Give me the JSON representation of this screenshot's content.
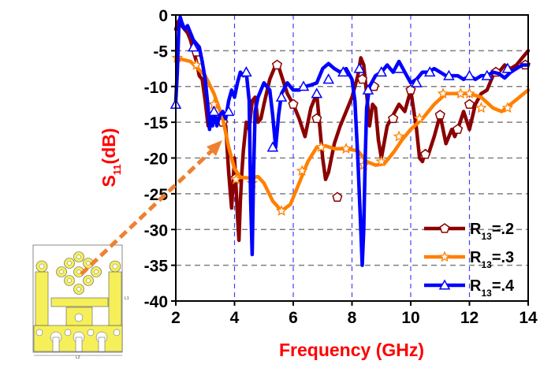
{
  "chart_data": {
    "type": "line",
    "title": "",
    "xlabel": "Frequency (GHz)",
    "ylabel": "S11(dB)",
    "ylabel_main": "S",
    "ylabel_sub": "11",
    "ylabel_suffix": "(dB)",
    "xlim": [
      2,
      14
    ],
    "ylim": [
      -40,
      0
    ],
    "xticks": [
      2,
      4,
      6,
      8,
      10,
      12,
      14
    ],
    "yticks": [
      0,
      -5,
      -10,
      -15,
      -20,
      -25,
      -30,
      -35,
      -40
    ],
    "grid": {
      "horizontal": "dashed gray",
      "vertical": "dashed blue at 4,6,8,10,12"
    },
    "legend_position": "lower right",
    "series": [
      {
        "name": "R13=.2",
        "label_main": "R",
        "label_sub": "13",
        "label_suffix": "=.2",
        "color": "#8b0000",
        "marker": "pentagon",
        "x": [
          2.0,
          2.1,
          2.2,
          2.3,
          2.4,
          2.5,
          2.6,
          2.7,
          2.8,
          2.9,
          3.0,
          3.1,
          3.2,
          3.3,
          3.4,
          3.5,
          3.6,
          3.7,
          3.8,
          3.9,
          4.0,
          4.05,
          4.1,
          4.15,
          4.2,
          4.25,
          4.3,
          4.4,
          4.5,
          4.6,
          4.7,
          4.8,
          4.9,
          5.0,
          5.2,
          5.4,
          5.5,
          5.6,
          5.8,
          6.0,
          6.2,
          6.4,
          6.6,
          6.8,
          7.0,
          7.1,
          7.2,
          7.4,
          7.6,
          7.8,
          8.0,
          8.1,
          8.2,
          8.3,
          8.4,
          8.5,
          8.6,
          8.7,
          8.8,
          8.9,
          9.0,
          9.2,
          9.4,
          9.6,
          9.8,
          10.0,
          10.2,
          10.3,
          10.4,
          10.5,
          10.6,
          10.8,
          11.0,
          11.2,
          11.4,
          11.5,
          11.6,
          11.8,
          12.0,
          12.2,
          12.4,
          12.6,
          12.8,
          13.0,
          13.2,
          13.4,
          13.6,
          13.8,
          14.0
        ],
        "y": [
          -2.0,
          -0.8,
          -1.5,
          -2.0,
          -2.5,
          -3.5,
          -5.0,
          -6.5,
          -8.5,
          -9.0,
          -12.0,
          -15.5,
          -15.0,
          -14.0,
          -14.5,
          -14.5,
          -15.0,
          -15.5,
          -22.0,
          -27.0,
          -20.0,
          -24.0,
          -28.0,
          -31.5,
          -26.0,
          -22.0,
          -19.0,
          -15.0,
          -16.0,
          -12.0,
          -11.5,
          -15.0,
          -14.5,
          -12.5,
          -9.0,
          -7.0,
          -7.2,
          -8.5,
          -11.0,
          -12.5,
          -14.5,
          -17.0,
          -13.0,
          -11.0,
          -20.0,
          -23.0,
          -22.0,
          -18.0,
          -15.5,
          -13.5,
          -11.5,
          -10.0,
          -8.5,
          -6.0,
          -7.0,
          -11.0,
          -15.5,
          -12.5,
          -13.0,
          -17.5,
          -20.0,
          -15.5,
          -14.0,
          -12.5,
          -13.5,
          -10.5,
          -16.0,
          -20.0,
          -20.5,
          -19.0,
          -19.5,
          -17.0,
          -14.0,
          -18.0,
          -16.0,
          -17.0,
          -16.0,
          -13.5,
          -16.0,
          -12.5,
          -11.0,
          -10.5,
          -8.5,
          -8.0,
          -7.0,
          -7.5,
          -7.0,
          -6.0,
          -5.0
        ],
        "marker_x": [
          2.7,
          3.6,
          4.05,
          5.45,
          6.0,
          6.8,
          7.5,
          8.35,
          8.75,
          9.4,
          10.0,
          10.5,
          11.0,
          11.6,
          12.0,
          12.9,
          13.9
        ],
        "marker_y": [
          -5.2,
          -15.0,
          -22.8,
          -7.0,
          -12.5,
          -14.5,
          -25.5,
          -9.0,
          -10.0,
          -14.5,
          -10.5,
          -19.5,
          -14.0,
          -16.0,
          -12.5,
          -8.0,
          -7.0
        ]
      },
      {
        "name": "R13=.3",
        "label_main": "R",
        "label_sub": "13",
        "label_suffix": "=.3",
        "color": "#ff8000",
        "marker": "star",
        "x": [
          2.0,
          2.5,
          3.0,
          3.3,
          3.6,
          3.8,
          4.0,
          4.2,
          4.5,
          4.8,
          5.0,
          5.3,
          5.6,
          5.9,
          6.2,
          6.5,
          6.8,
          7.1,
          7.4,
          7.8,
          8.2,
          8.5,
          8.8,
          9.1,
          9.4,
          9.7,
          10.0,
          10.4,
          10.8,
          11.2,
          11.6,
          12.0,
          12.4,
          12.8,
          13.1,
          13.4,
          13.7,
          14.0
        ],
        "y": [
          -6.0,
          -6.5,
          -8.5,
          -11.0,
          -14.5,
          -18.5,
          -21.5,
          -22.7,
          -22.8,
          -22.6,
          -23.5,
          -26.0,
          -27.4,
          -26.5,
          -23.5,
          -20.5,
          -18.5,
          -18.3,
          -18.7,
          -18.7,
          -19.0,
          -20.5,
          -21.0,
          -20.8,
          -19.3,
          -17.5,
          -16.0,
          -14.5,
          -12.5,
          -11.0,
          -11.0,
          -11.0,
          -11.5,
          -13.0,
          -13.5,
          -12.5,
          -11.5,
          -10.5
        ],
        "marker_x": [
          2.05,
          2.7,
          3.3,
          4.05,
          4.6,
          5.6,
          6.3,
          6.95,
          7.8,
          8.4,
          9.0,
          9.6,
          10.3,
          11.1,
          11.7,
          12.0,
          12.4,
          13.3
        ],
        "marker_y": [
          -6.0,
          -7.0,
          -12.5,
          -23.0,
          -23.5,
          -27.4,
          -21.8,
          -18.5,
          -18.7,
          -21.0,
          -20.5,
          -17.0,
          -14.5,
          -11.0,
          -11.0,
          -11.0,
          -13.0,
          -13.0
        ]
      },
      {
        "name": "R13=.4",
        "label_main": "R",
        "label_sub": "13",
        "label_suffix": "=.4",
        "color": "#0000ff",
        "marker": "triangle",
        "x": [
          2.0,
          2.05,
          2.1,
          2.15,
          2.2,
          2.3,
          2.4,
          2.5,
          2.6,
          2.8,
          2.9,
          3.0,
          3.1,
          3.15,
          3.2,
          3.25,
          3.3,
          3.4,
          3.5,
          3.6,
          3.7,
          3.8,
          3.9,
          4.0,
          4.1,
          4.2,
          4.3,
          4.4,
          4.5,
          4.55,
          4.6,
          4.65,
          4.7,
          4.8,
          5.0,
          5.2,
          5.3,
          5.4,
          5.5,
          5.6,
          5.8,
          6.0,
          6.2,
          6.4,
          6.6,
          6.8,
          7.0,
          7.2,
          7.4,
          7.6,
          7.8,
          8.0,
          8.1,
          8.2,
          8.3,
          8.35,
          8.4,
          8.45,
          8.5,
          8.6,
          8.8,
          9.0,
          9.2,
          9.4,
          9.6,
          9.8,
          10.0,
          10.2,
          10.4,
          10.6,
          10.8,
          11.0,
          11.2,
          11.4,
          11.6,
          11.8,
          12.0,
          12.2,
          12.4,
          12.6,
          12.8,
          13.0,
          13.2,
          13.4,
          13.6,
          13.8,
          14.0
        ],
        "y": [
          -12.0,
          -8.0,
          -2.0,
          -0.3,
          -1.0,
          -2.0,
          -1.5,
          -2.5,
          -3.5,
          -4.5,
          -6.5,
          -9.0,
          -13.0,
          -16.0,
          -14.0,
          -15.5,
          -13.5,
          -15.5,
          -14.0,
          -13.5,
          -14.5,
          -12.0,
          -10.5,
          -11.5,
          -9.5,
          -8.0,
          -8.5,
          -8.0,
          -12.0,
          -26.0,
          -33.5,
          -22.0,
          -13.5,
          -11.5,
          -9.5,
          -10.5,
          -14.0,
          -18.5,
          -14.0,
          -11.0,
          -9.5,
          -10.5,
          -10.5,
          -10.0,
          -9.8,
          -9.5,
          -7.5,
          -6.8,
          -7.5,
          -8.0,
          -7.5,
          -9.0,
          -12.0,
          -20.0,
          -30.0,
          -35.0,
          -30.0,
          -20.0,
          -13.0,
          -10.0,
          -8.5,
          -8.0,
          -7.0,
          -8.0,
          -6.5,
          -8.0,
          -9.5,
          -9.0,
          -8.0,
          -8.0,
          -7.5,
          -8.0,
          -8.5,
          -8.5,
          -8.5,
          -9.0,
          -8.5,
          -9.0,
          -8.5,
          -8.5,
          -8.0,
          -8.2,
          -8.8,
          -8.0,
          -7.5,
          -7.0,
          -7.0
        ],
        "marker_x": [
          2.0,
          2.6,
          3.3,
          3.8,
          4.4,
          5.3,
          5.6,
          6.35,
          6.8,
          7.2,
          7.7,
          8.25,
          8.55,
          9.0,
          9.6,
          10.2,
          10.65,
          11.3,
          12.0,
          12.6,
          13.3
        ],
        "marker_y": [
          -12.5,
          -4.5,
          -13.5,
          -13.5,
          -8.0,
          -18.5,
          -11.5,
          -10.0,
          -11.0,
          -9.0,
          -8.0,
          -7.5,
          -10.5,
          -8.0,
          -7.5,
          -9.5,
          -8.0,
          -8.5,
          -8.5,
          -8.5,
          -7.5
        ]
      }
    ]
  },
  "inset": {
    "description": "antenna-layout-schematic",
    "labels": [
      "L1",
      "L2"
    ],
    "fill_color": "#f5ef5a",
    "arrow_color": "#f08030"
  },
  "styles": {
    "grid_color": "#808080",
    "vgrid_color": "#4040ff",
    "axis_title_color": "#ff0000",
    "axis_color": "#000000"
  }
}
